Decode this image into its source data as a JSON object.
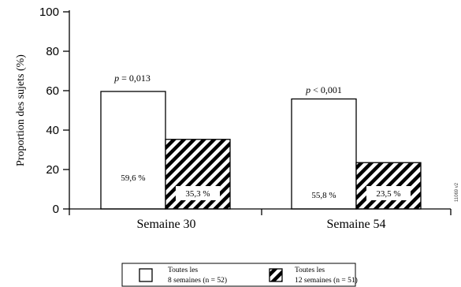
{
  "chart_data": {
    "type": "bar",
    "categories": [
      "Semaine 30",
      "Semaine 54"
    ],
    "series": [
      {
        "name": "Toutes les 8 semaines (n = 52)",
        "legend_line1": "Toutes les",
        "legend_line2": "8 semaines (n = 52)",
        "pattern": "white",
        "values": [
          59.6,
          55.8
        ],
        "labels": [
          "59,6 %",
          "55,8 %"
        ]
      },
      {
        "name": "Toutes les 12 semaines (n = 51)",
        "legend_line1": "Toutes les",
        "legend_line2": "12 semaines (n = 51)",
        "pattern": "hatched",
        "values": [
          35.3,
          23.5
        ],
        "labels": [
          "35,3 %",
          "23,5 %"
        ]
      }
    ],
    "p_values": [
      {
        "p": "p",
        "text": " = 0,013"
      },
      {
        "p": "p",
        "text": " < 0,001"
      }
    ],
    "ylabel": "Proportion des sujets (%)",
    "ylim": [
      0,
      100
    ],
    "yticks": [
      "0",
      "20",
      "40",
      "60",
      "80",
      "100"
    ],
    "side_text": "11069 v2",
    "colors": {
      "axis": "#000000",
      "bar_fill": "#ffffff",
      "hatch": "#000000"
    }
  }
}
